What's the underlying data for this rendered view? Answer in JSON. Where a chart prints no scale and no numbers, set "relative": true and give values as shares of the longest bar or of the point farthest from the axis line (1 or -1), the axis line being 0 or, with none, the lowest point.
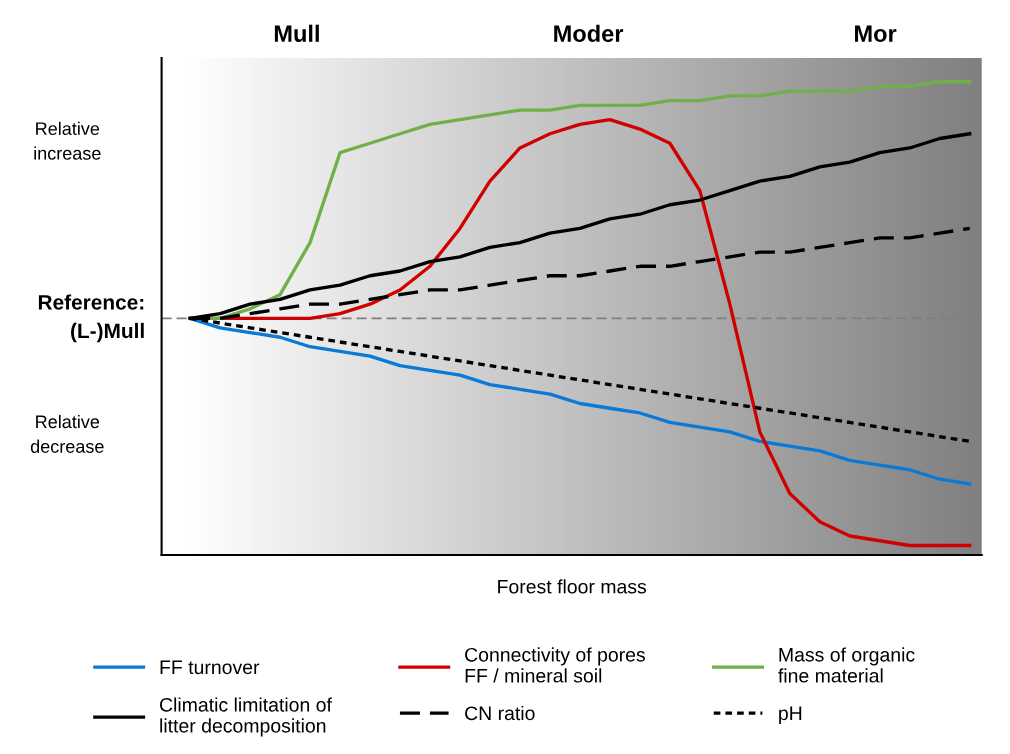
{
  "chart_data": {
    "type": "line",
    "relative": true,
    "xlabel": "Forest floor mass",
    "categories": [
      null,
      null,
      null,
      null,
      null,
      null,
      null,
      null,
      null,
      null,
      null,
      null,
      null,
      null,
      null,
      null,
      null,
      null,
      null,
      null,
      null,
      null,
      null,
      null,
      null,
      null,
      null
    ],
    "series": [
      {
        "name": "FF turnover",
        "color": "#0a7ad6",
        "line_style": "solid",
        "values": [
          0.5,
          0.48,
          0.47,
          0.46,
          0.44,
          0.43,
          0.42,
          0.4,
          0.39,
          0.38,
          0.36,
          0.35,
          0.34,
          0.32,
          0.31,
          0.3,
          0.28,
          0.27,
          0.26,
          0.24,
          0.23,
          0.22,
          0.2,
          0.19,
          0.18,
          0.16,
          0.15
        ]
      },
      {
        "name": "Connectivity of pores\nFF / mineral soil",
        "color": "#d00000",
        "line_style": "solid",
        "values": [
          0.5,
          0.5,
          0.5,
          0.5,
          0.5,
          0.51,
          0.53,
          0.56,
          0.61,
          0.69,
          0.79,
          0.86,
          0.89,
          0.91,
          0.92,
          0.9,
          0.87,
          0.77,
          0.53,
          0.26,
          0.13,
          0.07,
          0.04,
          0.03,
          0.02,
          0.02,
          0.02
        ]
      },
      {
        "name": "Mass of organic\nfine material",
        "color": "#70b048",
        "line_style": "solid",
        "values": [
          0.5,
          0.5,
          0.52,
          0.55,
          0.66,
          0.85,
          0.87,
          0.89,
          0.91,
          0.92,
          0.93,
          0.94,
          0.94,
          0.95,
          0.95,
          0.95,
          0.96,
          0.96,
          0.97,
          0.97,
          0.98,
          0.98,
          0.98,
          0.99,
          0.99,
          1.0,
          1.0
        ]
      },
      {
        "name": "Climatic limitation of\nlitter decomposition",
        "color": "#000000",
        "line_style": "solid",
        "values": [
          0.5,
          0.51,
          0.53,
          0.54,
          0.56,
          0.57,
          0.59,
          0.6,
          0.62,
          0.63,
          0.65,
          0.66,
          0.68,
          0.69,
          0.71,
          0.72,
          0.74,
          0.75,
          0.77,
          0.79,
          0.8,
          0.82,
          0.83,
          0.85,
          0.86,
          0.88,
          0.89
        ]
      },
      {
        "name": "CN ratio",
        "color": "#000000",
        "line_style": "dashed",
        "values": [
          0.5,
          0.5,
          0.51,
          0.52,
          0.53,
          0.53,
          0.54,
          0.55,
          0.56,
          0.56,
          0.57,
          0.58,
          0.59,
          0.59,
          0.6,
          0.61,
          0.61,
          0.62,
          0.63,
          0.64,
          0.64,
          0.65,
          0.66,
          0.67,
          0.67,
          0.68,
          0.69
        ]
      },
      {
        "name": "pH",
        "color": "#000000",
        "line_style": "dotted",
        "values": [
          0.5,
          0.49,
          0.48,
          0.47,
          0.46,
          0.45,
          0.44,
          0.43,
          0.42,
          0.41,
          0.4,
          0.39,
          0.38,
          0.37,
          0.36,
          0.35,
          0.34,
          0.33,
          0.32,
          0.31,
          0.3,
          0.29,
          0.28,
          0.27,
          0.26,
          0.25,
          0.24
        ]
      }
    ],
    "ref_lines": [
      {
        "axis": "y",
        "value": 0.5,
        "label": "Reference:\n(L-)Mull",
        "color": "#7f7f7f",
        "line_style": "dashed"
      }
    ],
    "annotations": [
      "Mull",
      "Moder",
      "Mor",
      "Relative\nincrease",
      "Relative\ndecrease"
    ],
    "legend": "bottom",
    "grid": false,
    "marker": "none"
  }
}
